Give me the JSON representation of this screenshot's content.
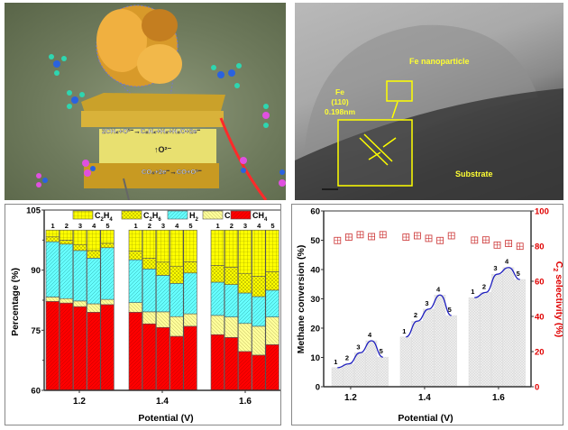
{
  "illustration": {
    "anode_reaction": "2CH₄+O²⁻→C₂H₄+H₂+H₂O+2e⁻",
    "ion_label": "↑O²⁻",
    "cathode_reaction": "CO₂+2e⁻→CO+O²⁻"
  },
  "tem": {
    "particle_label": "Fe nanoparticle",
    "fe_label": "Fe",
    "plane_label": "(110)",
    "spacing_label": "0.198nm",
    "substrate_label": "Substrate"
  },
  "chart_data": [
    {
      "type": "bar",
      "stacked": true,
      "title": "",
      "xlabel": "Potential (V)",
      "ylabel": "Percentage (%)",
      "ylim": [
        60,
        105
      ],
      "yticks": [
        "60",
        "75",
        "90",
        "105"
      ],
      "categories": [
        "1.2",
        "1.4",
        "1.6"
      ],
      "bar_labels": [
        "1",
        "2",
        "3",
        "4",
        "5"
      ],
      "legend": [
        "C2H4",
        "C2H6",
        "H2",
        "CO",
        "CH4"
      ],
      "legend_display": [
        {
          "main": "C",
          "sub1": "2",
          "mid": "H",
          "sub2": "4"
        },
        {
          "main": "C",
          "sub1": "2",
          "mid": "H",
          "sub2": "6"
        },
        {
          "main": "H",
          "sub1": "2",
          "mid": "",
          "sub2": ""
        },
        {
          "main": "CO",
          "sub1": "",
          "mid": "",
          "sub2": ""
        },
        {
          "main": "CH",
          "sub1": "4",
          "mid": "",
          "sub2": ""
        }
      ],
      "legend_placement": "top",
      "colors": {
        "CH4": "#ff0000",
        "CO": "#ffff99",
        "H2": "#66ffff",
        "C2H6": "#ffff00",
        "C2H4": "#ffff00"
      },
      "series": [
        {
          "name": "CH4",
          "values": [
            [
              82.2,
              81.8,
              80.9,
              79.5,
              81.4
            ],
            [
              79.5,
              76.6,
              75.7,
              73.5,
              76.0
            ],
            [
              73.9,
              73.2,
              69.7,
              68.8,
              71.4
            ]
          ]
        },
        {
          "name": "CO",
          "values": [
            [
              1.1,
              1.1,
              1.4,
              2.1,
              1.3
            ],
            [
              2.4,
              3.0,
              3.9,
              4.9,
              3.1
            ],
            [
              4.8,
              5.1,
              7.0,
              7.2,
              6.9
            ]
          ]
        },
        {
          "name": "H2",
          "values": [
            [
              13.8,
              13.6,
              12.6,
              11.4,
              12.9
            ],
            [
              10.7,
              10.7,
              9.1,
              8.3,
              10.2
            ],
            [
              8.3,
              8.1,
              7.6,
              7.4,
              6.7
            ]
          ]
        },
        {
          "name": "C2H6",
          "values": [
            [
              1.2,
              1.0,
              1.5,
              1.9,
              1.1
            ],
            [
              2.2,
              2.7,
              3.3,
              4.3,
              2.8
            ],
            [
              4.2,
              4.3,
              4.9,
              5.1,
              4.6
            ]
          ]
        },
        {
          "name": "C2H4",
          "values": [
            [
              1.7,
              2.5,
              3.6,
              5.1,
              3.3
            ],
            [
              5.2,
              7.0,
              8.0,
              9.0,
              7.9
            ],
            [
              8.8,
              9.3,
              10.8,
              11.5,
              10.4
            ]
          ]
        }
      ]
    },
    {
      "type": "bar",
      "title": "",
      "xlabel": "Potential (V)",
      "ylabel": "Methane conversion (%)",
      "y2label": "C2 selectivity (%)",
      "ylim": [
        0,
        60
      ],
      "y2lim": [
        0,
        100
      ],
      "xlim": [
        1.127,
        1.688
      ],
      "yticks": [
        "0",
        "10",
        "20",
        "30",
        "40",
        "50",
        "60"
      ],
      "y2ticks": [
        "0",
        "20",
        "40",
        "60",
        "80",
        "100"
      ],
      "categories": [
        "1.2",
        "1.4",
        "1.6"
      ],
      "bar_labels": [
        "1",
        "2",
        "3",
        "4",
        "5"
      ],
      "colors": {
        "bars": "#e6e6e6",
        "curve": "#1f1fbf",
        "selectivity": "#cc3333",
        "axis2": "#e00000"
      },
      "series": [
        {
          "name": "Methane conversion",
          "kind": "bar",
          "values": [
            [
              6.5,
              7.8,
              11.6,
              15.7,
              10.1
            ],
            [
              17.0,
              22.4,
              26.5,
              31.3,
              24.3
            ],
            [
              30.4,
              32.2,
              38.4,
              40.7,
              36.6
            ]
          ]
        },
        {
          "name": "C2 selectivity",
          "kind": "scatter",
          "axis": "right",
          "values": [
            [
              83.2,
              85.1,
              86.5,
              85.4,
              86.5
            ],
            [
              85.1,
              85.9,
              84.4,
              83.2,
              85.9
            ],
            [
              83.4,
              83.5,
              80.6,
              81.5,
              79.9
            ]
          ]
        }
      ]
    }
  ]
}
